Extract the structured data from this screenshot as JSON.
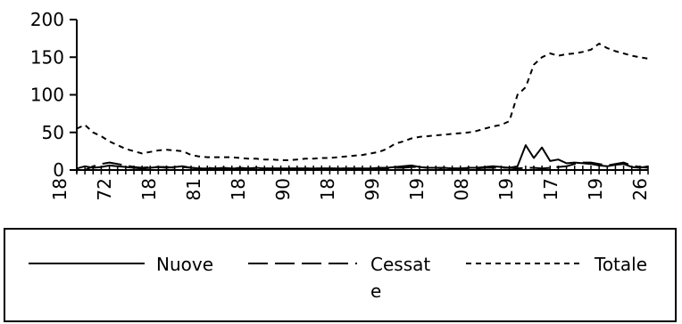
{
  "chart_data": {
    "type": "line",
    "ylim": [
      0,
      200
    ],
    "yticks": [
      "0",
      "50",
      "100",
      "150",
      "200"
    ],
    "xtick_labels": [
      "18",
      "72",
      "18",
      "81",
      "18",
      "90",
      "18",
      "99",
      "19",
      "08",
      "19",
      "17",
      "19",
      "26"
    ],
    "grid": false,
    "legend_position": "bottom",
    "x": [
      1,
      2,
      3,
      4,
      5,
      6,
      7,
      8,
      9,
      10,
      11,
      12,
      13,
      14,
      15,
      16,
      17,
      18,
      19,
      20,
      21,
      22,
      23,
      24,
      25,
      26,
      27,
      28,
      29,
      30,
      31,
      32,
      33,
      34,
      35,
      36,
      37,
      38,
      39,
      40,
      41,
      42,
      43,
      44,
      45,
      46,
      47,
      48,
      49,
      50,
      51,
      52,
      53,
      54,
      55,
      56,
      57,
      58,
      59,
      60,
      61,
      62,
      63,
      64,
      65,
      66,
      67,
      68,
      69,
      70,
      71
    ],
    "series": [
      {
        "name": "Nuove",
        "style": "solid",
        "values": [
          2,
          5,
          3,
          4,
          6,
          5,
          4,
          3,
          2,
          3,
          4,
          3,
          4,
          5,
          3,
          2,
          2,
          2,
          3,
          2,
          2,
          2,
          3,
          2,
          2,
          2,
          2,
          2,
          2,
          2,
          2,
          2,
          2,
          2,
          2,
          2,
          2,
          3,
          3,
          4,
          5,
          6,
          4,
          3,
          3,
          3,
          2,
          2,
          3,
          3,
          4,
          5,
          4,
          3,
          5,
          33,
          16,
          30,
          12,
          14,
          9,
          10,
          9,
          8,
          6,
          5,
          7,
          8,
          4,
          3,
          5
        ]
      },
      {
        "name": "Cessate",
        "style": "dashed",
        "values": [
          0,
          0,
          5,
          8,
          10,
          8,
          6,
          4,
          3,
          4,
          4,
          4,
          3,
          4,
          3,
          2,
          3,
          2,
          2,
          2,
          3,
          2,
          2,
          2,
          2,
          2,
          2,
          2,
          2,
          2,
          2,
          2,
          2,
          2,
          2,
          2,
          2,
          2,
          2,
          3,
          3,
          4,
          4,
          3,
          3,
          2,
          2,
          2,
          2,
          2,
          3,
          3,
          3,
          3,
          2,
          3,
          3,
          2,
          3,
          4,
          5,
          8,
          10,
          10,
          8,
          6,
          8,
          10,
          6,
          4,
          3
        ]
      },
      {
        "name": "Totale",
        "style": "dotted",
        "values": [
          55,
          60,
          50,
          45,
          38,
          33,
          28,
          25,
          22,
          24,
          26,
          27,
          26,
          25,
          20,
          18,
          17,
          17,
          17,
          17,
          16,
          15,
          15,
          14,
          14,
          13,
          13,
          14,
          15,
          15,
          16,
          16,
          17,
          18,
          19,
          20,
          22,
          24,
          28,
          35,
          38,
          42,
          44,
          45,
          46,
          47,
          48,
          49,
          50,
          52,
          55,
          58,
          60,
          65,
          100,
          110,
          140,
          150,
          155,
          152,
          154,
          155,
          157,
          160,
          168,
          162,
          158,
          155,
          152,
          150,
          148
        ]
      }
    ]
  },
  "legend": {
    "items": [
      {
        "name": "Nuove",
        "label_lines": [
          "Nuove"
        ]
      },
      {
        "name": "Cessate",
        "label_lines": [
          "Cessat",
          "e"
        ]
      },
      {
        "name": "Totale",
        "label_lines": [
          "Totale"
        ]
      }
    ]
  }
}
